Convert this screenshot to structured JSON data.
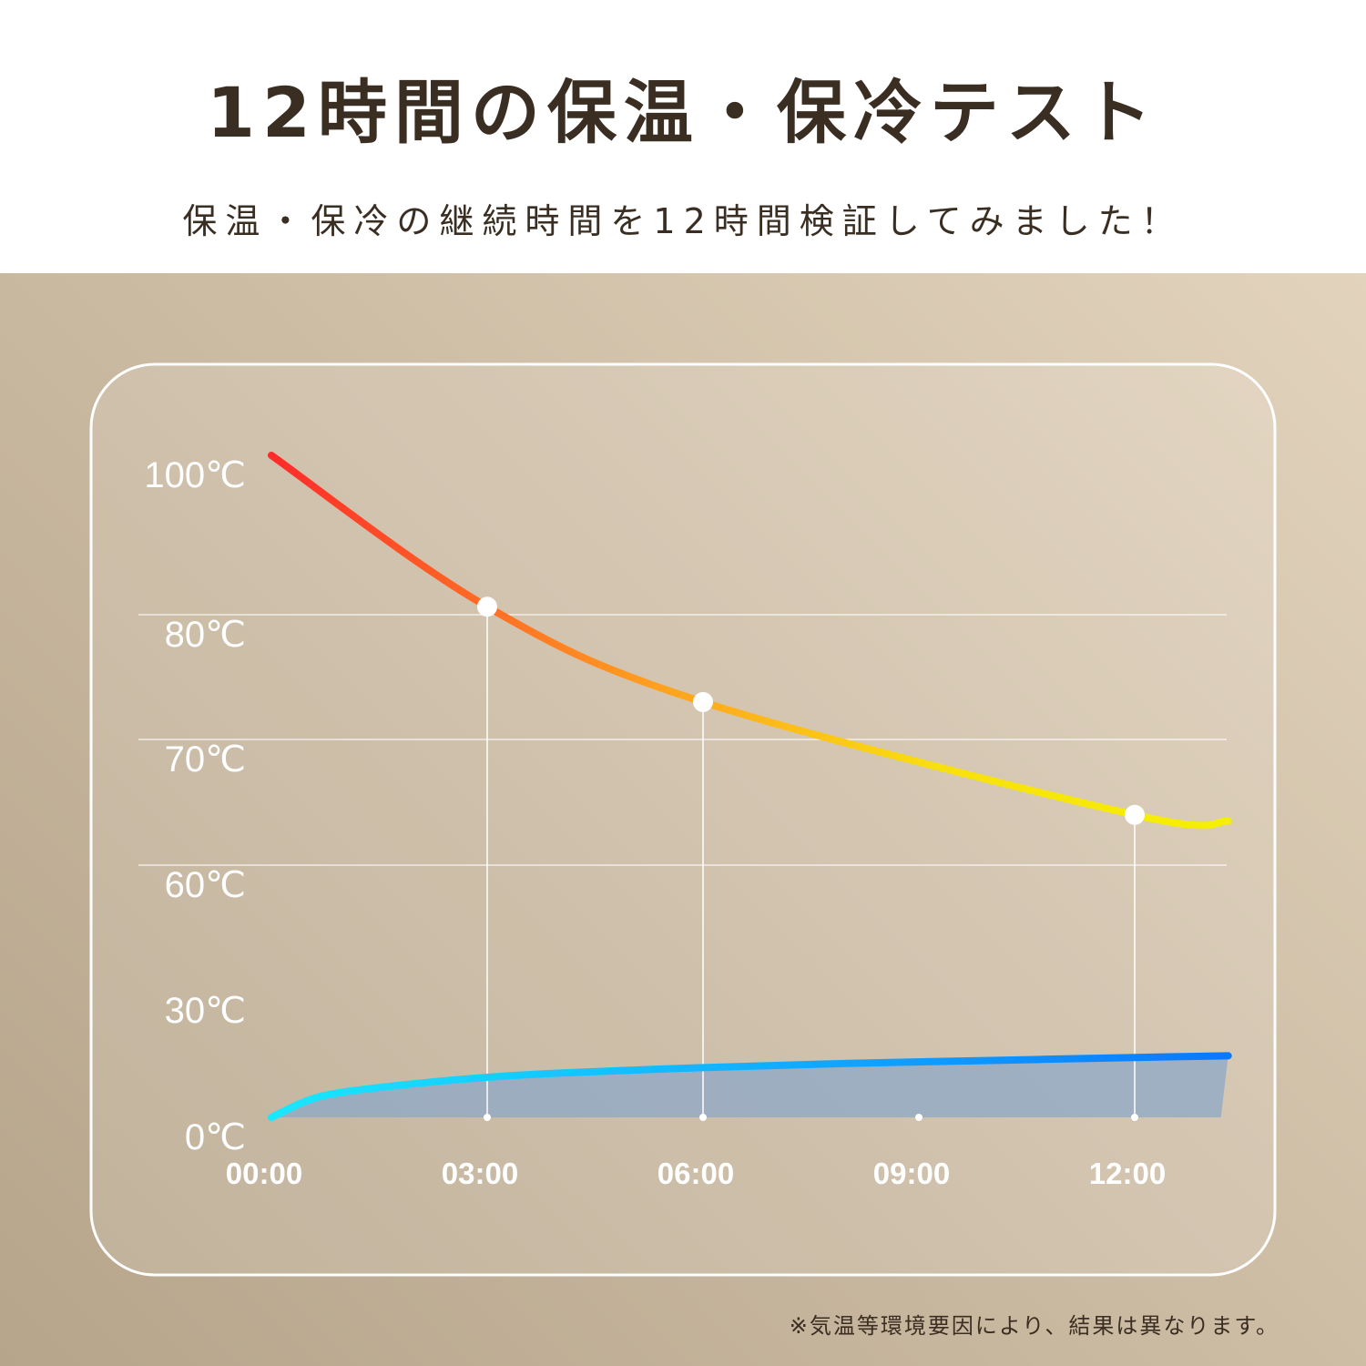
{
  "header": {
    "title": "12時間の保温・保冷テスト",
    "subtitle": "保温・保冷の継続時間を12時間検証してみました！"
  },
  "footnote": "※気温等環境要因により、結果は異なります。",
  "colors": {
    "text": "#3a2e22",
    "hot_start": "#ff2a2a",
    "hot_mid": "#ffa020",
    "hot_end": "#f5f000",
    "cold_start": "#18e8ff",
    "cold_end": "#0a78ff",
    "cold_fill": "#8da8c8"
  },
  "chart_data": {
    "type": "line",
    "y_tick_labels": [
      "100℃",
      "80℃",
      "70℃",
      "60℃",
      "30℃",
      "0℃"
    ],
    "x_tick_labels": [
      "00:00",
      "03:00",
      "06:00",
      "09:00",
      "12:00"
    ],
    "grid": true,
    "series": [
      {
        "key": "hot",
        "x": [
          0,
          3,
          6,
          12,
          13.3
        ],
        "y": [
          100,
          81,
          73,
          64,
          63.5
        ]
      },
      {
        "key": "cold",
        "x": [
          0,
          0.5,
          1,
          2,
          3,
          4,
          6,
          8,
          10,
          12,
          13.3
        ],
        "y": [
          0,
          4,
          6,
          8,
          9.5,
          10.5,
          11.8,
          12.8,
          13.5,
          14.2,
          14.6
        ],
        "filled": true
      }
    ],
    "markers": [
      {
        "series": "hot",
        "x": 3,
        "y": 81
      },
      {
        "series": "hot",
        "x": 6,
        "y": 73
      },
      {
        "series": "hot",
        "x": 12,
        "y": 64
      }
    ],
    "baseline_points_x": [
      3,
      6,
      9,
      12
    ]
  }
}
